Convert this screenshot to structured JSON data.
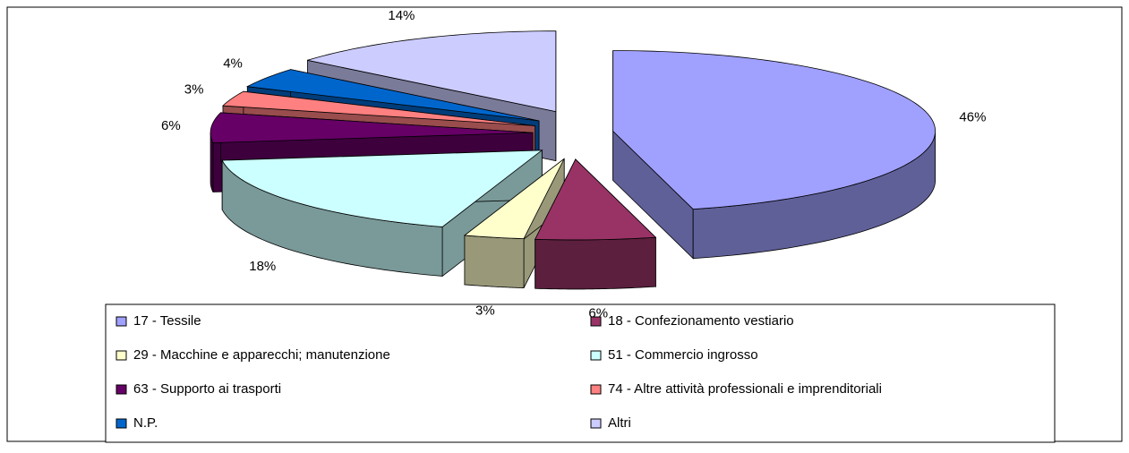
{
  "chart_data": {
    "type": "pie",
    "categories": [
      "17 - Tessile",
      "18 - Confezionamento vestiario",
      "29 - Macchine e apparecchi; manutenzione",
      "51 - Commercio ingrosso",
      "63 - Supporto ai trasporti",
      "74 - Altre attività professionali e imprenditoriali",
      "N.P.",
      "Altri"
    ],
    "values": [
      46,
      6,
      3,
      18,
      6,
      3,
      4,
      14
    ],
    "value_labels": [
      "46%",
      "6%",
      "3%",
      "18%",
      "6%",
      "3%",
      "4%",
      "14%"
    ],
    "colors": [
      "#a0a0ff",
      "#993366",
      "#ffffcc",
      "#ccffff",
      "#660066",
      "#ff8080",
      "#0066cc",
      "#ccccff"
    ],
    "legend": "bottom"
  }
}
